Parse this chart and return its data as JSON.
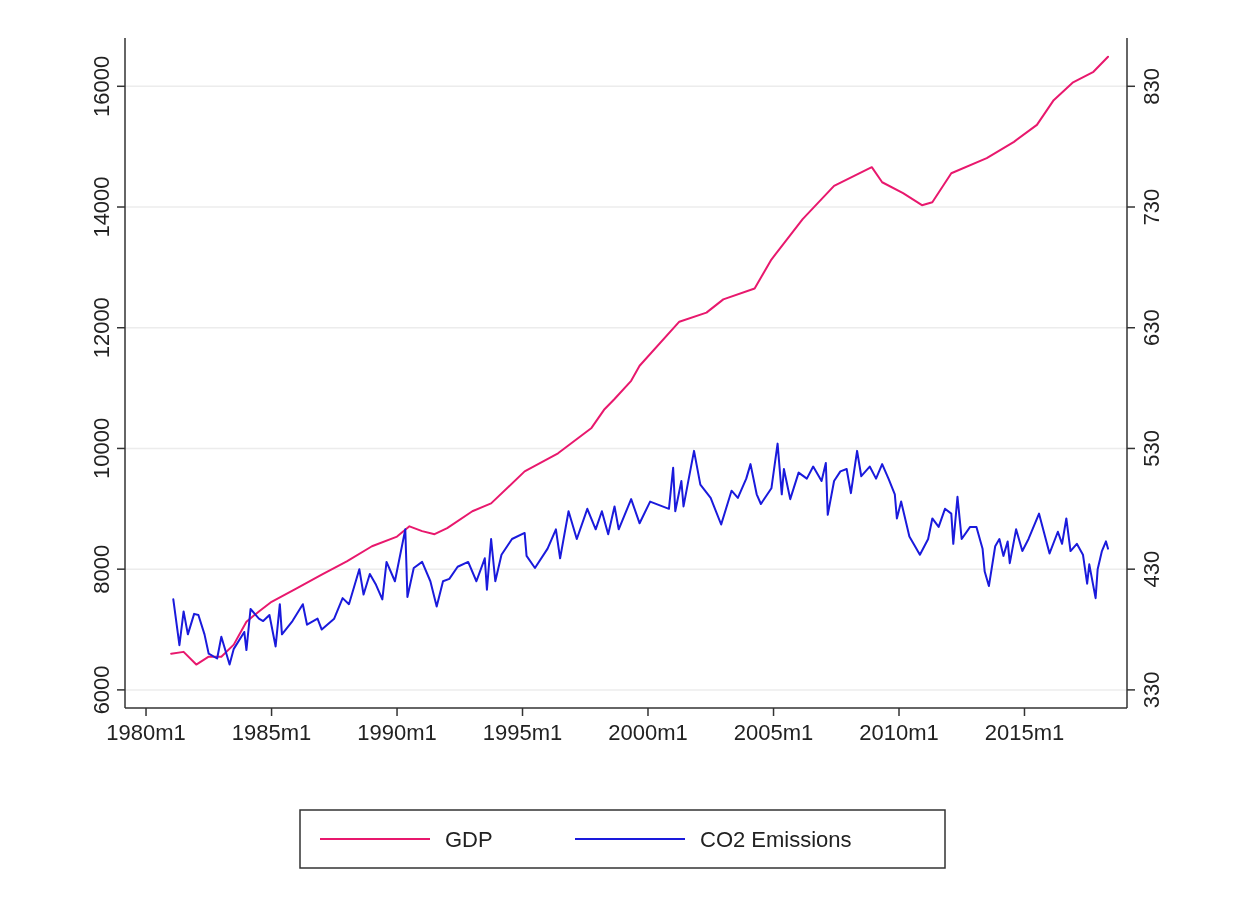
{
  "chart_data": {
    "type": "line",
    "xlim": [
      "1979-03",
      "2019-02"
    ],
    "xticks": [
      {
        "value": "1980-01",
        "label": "1980m1"
      },
      {
        "value": "1985-01",
        "label": "1985m1"
      },
      {
        "value": "1990-01",
        "label": "1990m1"
      },
      {
        "value": "1995-01",
        "label": "1995m1"
      },
      {
        "value": "2000-01",
        "label": "2000m1"
      },
      {
        "value": "2005-01",
        "label": "2005m1"
      },
      {
        "value": "2010-01",
        "label": "2010m1"
      },
      {
        "value": "2015-01",
        "label": "2015m1"
      }
    ],
    "ylim": [
      5700,
      16800
    ],
    "yticks": [
      6000,
      8000,
      10000,
      12000,
      14000,
      16000
    ],
    "y2lim": [
      315,
      870
    ],
    "y2ticks": [
      330,
      430,
      530,
      630,
      730,
      830
    ],
    "grid": "y",
    "legend": "bottom",
    "line_style": "solid",
    "marker": "none",
    "series": [
      {
        "name": "GDP",
        "color": "#e8186d",
        "x": [
          "1981-01",
          "1981-07",
          "1982-01",
          "1982-07",
          "1983-01",
          "1983-07",
          "1984-01",
          "1984-07",
          "1985-01",
          "1986-01",
          "1987-01",
          "1988-01",
          "1989-01",
          "1990-01",
          "1990-07",
          "1991-01",
          "1991-07",
          "1992-01",
          "1993-01",
          "1993-10",
          "1995-02",
          "1996-06",
          "1997-10",
          "1998-04",
          "1998-09",
          "1999-05",
          "1999-09",
          "2001-04",
          "2002-05",
          "2003-01",
          "2004-04",
          "2004-12",
          "2006-03",
          "2007-06",
          "2008-12",
          "2009-05",
          "2010-03",
          "2010-12",
          "2011-05",
          "2012-02",
          "2013-07",
          "2014-08",
          "2015-07",
          "2016-03",
          "2016-12",
          "2017-10",
          "2018-05"
        ],
        "values": [
          6600,
          6630,
          6420,
          6550,
          6550,
          6750,
          7130,
          7300,
          7460,
          7680,
          7910,
          8130,
          8380,
          8540,
          8710,
          8630,
          8580,
          8680,
          8960,
          9090,
          9620,
          9920,
          10340,
          10640,
          10820,
          11120,
          11370,
          12100,
          12250,
          12470,
          12650,
          13130,
          13800,
          14350,
          14660,
          14410,
          14230,
          14030,
          14080,
          14560,
          14810,
          15080,
          15360,
          15770,
          16060,
          16240,
          16490
        ]
      },
      {
        "name": "CO2 Emissions",
        "color": "#1a1adc",
        "axis": "y2",
        "x": [
          "1981-02",
          "1981-05",
          "1981-07",
          "1981-09",
          "1981-12",
          "1982-02",
          "1982-05",
          "1982-07",
          "1982-11",
          "1983-01",
          "1983-05",
          "1983-07",
          "1983-12",
          "1984-01",
          "1984-03",
          "1984-07",
          "1984-09",
          "1984-12",
          "1985-03",
          "1985-05",
          "1985-06",
          "1985-11",
          "1986-04",
          "1986-06",
          "1986-11",
          "1987-01",
          "1987-07",
          "1987-11",
          "1988-02",
          "1988-07",
          "1988-09",
          "1988-12",
          "1989-03",
          "1989-06",
          "1989-08",
          "1989-12",
          "1990-05",
          "1990-06",
          "1990-09",
          "1991-01",
          "1991-05",
          "1991-08",
          "1991-11",
          "1992-02",
          "1992-06",
          "1992-11",
          "1993-03",
          "1993-07",
          "1993-08",
          "1993-10",
          "1993-12",
          "1994-03",
          "1994-08",
          "1995-02",
          "1995-03",
          "1995-07",
          "1996-01",
          "1996-05",
          "1996-07",
          "1996-11",
          "1997-03",
          "1997-08",
          "1997-12",
          "1998-03",
          "1998-06",
          "1998-09",
          "1998-11",
          "1999-05",
          "1999-09",
          "2000-02",
          "2000-11",
          "2001-01",
          "2001-02",
          "2001-05",
          "2001-06",
          "2001-11",
          "2002-02",
          "2002-07",
          "2002-12",
          "2003-05",
          "2003-08",
          "2003-12",
          "2004-02",
          "2004-05",
          "2004-07",
          "2004-12",
          "2005-03",
          "2005-05",
          "2005-06",
          "2005-09",
          "2006-01",
          "2006-05",
          "2006-08",
          "2006-12",
          "2007-02",
          "2007-03",
          "2007-06",
          "2007-09",
          "2007-12",
          "2008-02",
          "2008-05",
          "2008-07",
          "2008-11",
          "2009-02",
          "2009-05",
          "2009-08",
          "2009-11",
          "2009-12",
          "2010-02",
          "2010-06",
          "2010-08",
          "2010-11",
          "2011-03",
          "2011-05",
          "2011-08",
          "2011-11",
          "2012-02",
          "2012-03",
          "2012-05",
          "2012-07",
          "2012-11",
          "2013-02",
          "2013-05",
          "2013-06",
          "2013-08",
          "2013-11",
          "2014-01",
          "2014-03",
          "2014-05",
          "2014-06",
          "2014-09",
          "2014-12",
          "2015-03",
          "2015-08",
          "2016-01",
          "2016-05",
          "2016-07",
          "2016-09",
          "2016-11",
          "2017-02",
          "2017-05",
          "2017-07",
          "2017-08",
          "2017-11",
          "2017-12",
          "2018-02",
          "2018-04",
          "2018-05"
        ],
        "values": [
          405,
          367,
          395,
          376,
          393,
          392,
          376,
          360,
          356,
          374,
          351,
          364,
          378,
          363,
          397,
          389,
          387,
          392,
          366,
          401,
          376,
          387,
          401,
          384,
          389,
          380,
          389,
          406,
          401,
          430,
          409,
          426,
          417,
          405,
          436,
          420,
          463,
          407,
          431,
          436,
          420,
          399,
          420,
          422,
          432,
          436,
          420,
          439,
          413,
          455,
          420,
          442,
          455,
          460,
          441,
          431,
          447,
          463,
          439,
          478,
          455,
          480,
          463,
          478,
          459,
          482,
          463,
          488,
          468,
          486,
          480,
          514,
          478,
          503,
          482,
          528,
          500,
          489,
          467,
          495,
          489,
          505,
          517,
          492,
          484,
          497,
          534,
          492,
          513,
          488,
          510,
          505,
          515,
          503,
          518,
          475,
          503,
          511,
          513,
          493,
          528,
          507,
          515,
          505,
          517,
          505,
          492,
          472,
          486,
          457,
          451,
          442,
          455,
          472,
          465,
          480,
          476,
          451,
          490,
          455,
          465,
          465,
          447,
          428,
          416,
          449,
          455,
          441,
          453,
          435,
          463,
          445,
          455,
          476,
          443,
          461,
          451,
          472,
          445,
          451,
          442,
          418,
          434,
          406,
          430,
          445,
          453,
          447
        ]
      }
    ]
  }
}
